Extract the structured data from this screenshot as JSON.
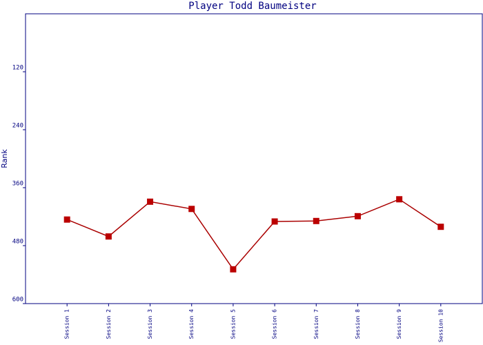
{
  "chart_data": {
    "type": "line",
    "title": "Player Todd Baumeister",
    "y_label": "Rank",
    "categories": [
      "Session 1",
      "Session 2",
      "Session 3",
      "Session 4",
      "Session 5",
      "Session 6",
      "Session 7",
      "Session 8",
      "Session 9",
      "Session 10"
    ],
    "series": [
      {
        "name": "Rank",
        "color": "#aa0000",
        "marker_color": "#bb0000",
        "values": [
          426,
          461,
          389,
          404,
          529,
          430,
          429,
          419,
          384,
          441
        ]
      }
    ],
    "ylim": [
      0,
      600
    ],
    "yticks": [
      120,
      240,
      360,
      480,
      600
    ],
    "y_inverted": true,
    "axis_color": "#000080"
  }
}
